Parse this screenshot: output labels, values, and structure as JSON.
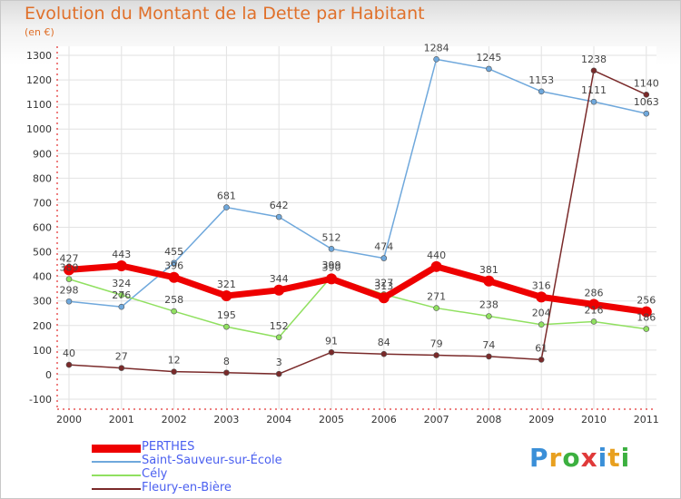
{
  "title": "Evolution du Montant de la Dette par Habitant",
  "unit_label": "(en €)",
  "brand": {
    "letters": [
      "P",
      "r",
      "o",
      "x",
      "i",
      "t",
      "i"
    ],
    "colors": [
      "#3a8fd8",
      "#e8a020",
      "#3cb040",
      "#e03a3a",
      "#3a8fd8",
      "#e8a020",
      "#3cb040"
    ]
  },
  "chart_data": {
    "type": "line",
    "x": [
      "2000",
      "2001",
      "2002",
      "2003",
      "2004",
      "2005",
      "2006",
      "2007",
      "2008",
      "2009",
      "2010",
      "2011"
    ],
    "ylim": [
      -100,
      1300
    ],
    "yticks": [
      -100,
      0,
      100,
      200,
      300,
      400,
      500,
      600,
      700,
      800,
      900,
      1000,
      1100,
      1200,
      1300
    ],
    "grid": true,
    "legend_position": "bottom-left",
    "series": [
      {
        "name": "PERTHES",
        "color": "#ee0000",
        "line_width": 7,
        "values": [
          427,
          443,
          396,
          321,
          344,
          390,
          313,
          440,
          381,
          316,
          286,
          256
        ]
      },
      {
        "name": "Saint-Sauveur-sur-École",
        "color": "#6fa8dc",
        "line_width": 1.5,
        "values": [
          298,
          276,
          455,
          681,
          642,
          512,
          474,
          1284,
          1245,
          1153,
          1111,
          1063
        ]
      },
      {
        "name": "Cély",
        "color": "#90e060",
        "line_width": 1.5,
        "values": [
          389,
          324,
          258,
          195,
          152,
          399,
          327,
          271,
          238,
          204,
          216,
          186
        ]
      },
      {
        "name": "Fleury-en-Bière",
        "color": "#7a2a2a",
        "line_width": 1.5,
        "values": [
          40,
          27,
          12,
          8,
          3,
          91,
          84,
          79,
          74,
          61,
          1238,
          1140
        ]
      }
    ]
  }
}
